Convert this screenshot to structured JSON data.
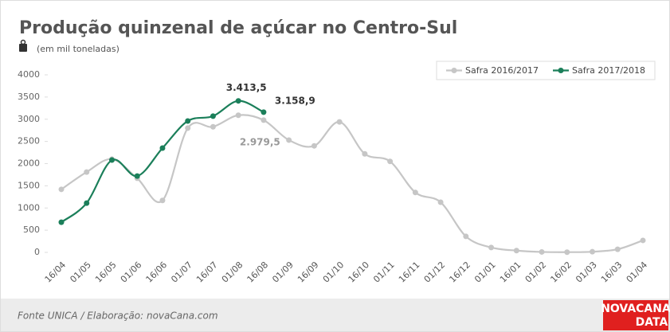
{
  "chart_data": {
    "type": "line",
    "title": "Produção quinzenal de açúcar no Centro-Sul",
    "subtitle": "(em mil toneladas)",
    "categories": [
      "16/04",
      "01/05",
      "16/05",
      "01/06",
      "16/06",
      "01/07",
      "16/07",
      "01/08",
      "16/08",
      "01/09",
      "16/09",
      "01/10",
      "16/10",
      "01/11",
      "16/11",
      "01/12",
      "16/12",
      "01/01",
      "16/01",
      "01/02",
      "16/02",
      "01/03",
      "16/03",
      "01/04"
    ],
    "series": [
      {
        "name": "Safra 2016/2017",
        "color": "#c6c6c6",
        "values": [
          1420,
          1810,
          2100,
          1670,
          1170,
          2800,
          2830,
          3090,
          2979.5,
          2530,
          2400,
          2940,
          2220,
          2050,
          1350,
          1130,
          360,
          110,
          40,
          10,
          5,
          15,
          70,
          270
        ],
        "value_labels": [
          null,
          null,
          null,
          null,
          null,
          null,
          null,
          null,
          "2.979,5",
          null,
          null,
          null,
          null,
          null,
          null,
          null,
          null,
          null,
          null,
          null,
          null,
          null,
          null,
          null
        ]
      },
      {
        "name": "Safra 2017/2018",
        "color": "#1b7f5a",
        "values": [
          680,
          1110,
          2080,
          1720,
          2350,
          2960,
          3070,
          3413.5,
          3158.9,
          null,
          null,
          null,
          null,
          null,
          null,
          null,
          null,
          null,
          null,
          null,
          null,
          null,
          null,
          null
        ],
        "value_labels": [
          null,
          null,
          null,
          null,
          null,
          null,
          null,
          "3.413,5",
          "3.158,9",
          null,
          null,
          null,
          null,
          null,
          null,
          null,
          null,
          null,
          null,
          null,
          null,
          null,
          null,
          null
        ]
      }
    ],
    "ylim": [
      0,
      4000
    ],
    "yticks": [
      0,
      500,
      1000,
      1500,
      2000,
      2500,
      3000,
      3500,
      4000
    ],
    "grid": false,
    "legend": "top-right"
  },
  "source": "Fonte UNICA / Elaboração: novaCana.com",
  "brand": [
    "NOVACANA",
    "DATA"
  ]
}
